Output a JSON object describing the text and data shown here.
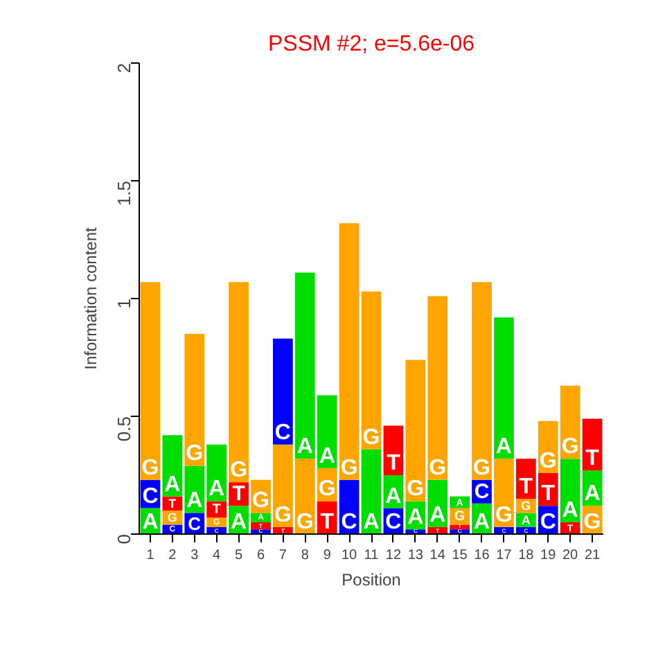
{
  "chart_data": {
    "type": "bar",
    "stacked": true,
    "title": "PSSM #2; e=5.6e-06",
    "xlabel": "Position",
    "ylabel": "Information content",
    "x": [
      1,
      2,
      3,
      4,
      5,
      6,
      7,
      8,
      9,
      10,
      11,
      12,
      13,
      14,
      15,
      16,
      17,
      18,
      19,
      20,
      21
    ],
    "xlim": [
      0.5,
      21.5
    ],
    "xticks": [
      1,
      2,
      3,
      4,
      5,
      6,
      7,
      8,
      9,
      10,
      11,
      12,
      13,
      14,
      15,
      16,
      17,
      18,
      19,
      20,
      21
    ],
    "ylim": [
      0,
      2
    ],
    "yticks": [
      0,
      {
        "value": 0.5,
        "label": "0.5"
      },
      1,
      {
        "value": 1.5,
        "label": "1.5"
      },
      2
    ],
    "series": [
      {
        "values": [
          0.11,
          0.04,
          0.09,
          0.03,
          0.12,
          0.02,
          0.03,
          0.32,
          0.14,
          0.23,
          0.36,
          0.11,
          0.02,
          0.03,
          0.02,
          0.13,
          0.03,
          0.03,
          0.12,
          0.05,
          0.12
        ],
        "value_labels": [
          "A",
          "C",
          "C",
          "C",
          "A",
          "C",
          "T",
          "G",
          "T",
          "C",
          "A",
          "C",
          "C",
          "T",
          "C",
          "A",
          "C",
          "C",
          "C",
          "T",
          "G"
        ],
        "colors": [
          "#00dd00",
          "#0000ff",
          "#0000ff",
          "#0000ff",
          "#00dd00",
          "#0000ff",
          "#ff0000",
          "#ffa500",
          "#ff0000",
          "#0000ff",
          "#00dd00",
          "#0000ff",
          "#0000ff",
          "#ff0000",
          "#0000ff",
          "#00dd00",
          "#0000ff",
          "#0000ff",
          "#0000ff",
          "#ff0000",
          "#ffa500"
        ]
      },
      {
        "values": [
          0.12,
          0.06,
          0.2,
          0.04,
          0.1,
          0.03,
          0.35,
          0.79,
          0.14,
          1.09,
          0.67,
          0.14,
          0.12,
          0.2,
          0.02,
          0.1,
          0.29,
          0.06,
          0.14,
          0.27,
          0.15
        ],
        "value_labels": [
          "C",
          "G",
          "A",
          "G",
          "T",
          "T",
          "G",
          "A",
          "G",
          "G",
          "G",
          "A",
          "A",
          "A",
          "T",
          "C",
          "G",
          "A",
          "T",
          "A",
          "A"
        ],
        "colors": [
          "#0000ff",
          "#ffa500",
          "#00dd00",
          "#ffa500",
          "#ff0000",
          "#ff0000",
          "#ffa500",
          "#00dd00",
          "#ffa500",
          "#ffa500",
          "#ffa500",
          "#00dd00",
          "#00dd00",
          "#00dd00",
          "#ff0000",
          "#0000ff",
          "#ffa500",
          "#00dd00",
          "#ff0000",
          "#00dd00",
          "#00dd00"
        ]
      },
      {
        "values": [
          0.84,
          0.06,
          0.56,
          0.07,
          0.85,
          0.04,
          0.45,
          null,
          0.31,
          null,
          null,
          0.21,
          0.6,
          0.78,
          0.07,
          0.84,
          0.6,
          0.06,
          0.22,
          0.31,
          0.22
        ],
        "value_labels": [
          "G",
          "T",
          "G",
          "T",
          "G",
          "A",
          "C",
          null,
          "A",
          null,
          null,
          "T",
          "G",
          "G",
          "G",
          "G",
          "A",
          "G",
          "G",
          "G",
          "T"
        ],
        "colors": [
          "#ffa500",
          "#ff0000",
          "#ffa500",
          "#ff0000",
          "#ffa500",
          "#00dd00",
          "#0000ff",
          "#000000",
          "#00dd00",
          "#000000",
          "#000000",
          "#ff0000",
          "#ffa500",
          "#ffa500",
          "#ffa500",
          "#ffa500",
          "#00dd00",
          "#ffa500",
          "#ffa500",
          "#ffa500",
          "#ff0000"
        ]
      },
      {
        "values": [
          null,
          0.26,
          null,
          0.24,
          null,
          0.14,
          null,
          null,
          null,
          null,
          null,
          null,
          null,
          null,
          0.05,
          null,
          null,
          0.17,
          null,
          null,
          null
        ],
        "value_labels": [
          null,
          "A",
          null,
          "A",
          null,
          "G",
          null,
          null,
          null,
          null,
          null,
          null,
          null,
          null,
          "A",
          null,
          null,
          "T",
          null,
          null,
          null
        ],
        "colors": [
          "#000000",
          "#00dd00",
          "#000000",
          "#00dd00",
          "#000000",
          "#ffa500",
          "#000000",
          "#000000",
          "#000000",
          "#000000",
          "#000000",
          "#000000",
          "#000000",
          "#000000",
          "#00dd00",
          "#000000",
          "#000000",
          "#ff0000",
          "#000000",
          "#000000",
          "#000000"
        ]
      }
    ]
  }
}
